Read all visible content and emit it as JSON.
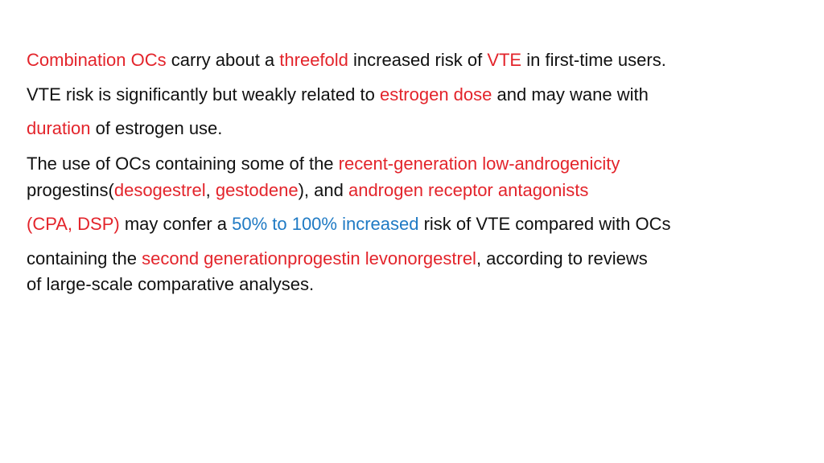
{
  "lines": [
    {
      "runs": [
        {
          "text": "Combination OCs",
          "color": "#e3242b"
        },
        {
          "text": " carry about a "
        },
        {
          "text": "threefold",
          "color": "#e3242b"
        },
        {
          "text": " increased risk of "
        },
        {
          "text": "VTE",
          "color": "#e3242b"
        },
        {
          "text": " in first-time users."
        }
      ]
    },
    {
      "runs": [
        {
          "text": "VTE risk is significantly but weakly related to "
        },
        {
          "text": "estrogen dose",
          "color": "#e3242b"
        },
        {
          "text": " and may wane with"
        }
      ]
    },
    {
      "runs": [
        {
          "text": "duration",
          "color": "#e3242b"
        },
        {
          "text": " of estrogen use."
        }
      ]
    },
    {
      "runs": [
        {
          "text": "The use of OCs containing some of the "
        },
        {
          "text": "recent-generation low-androgenicity",
          "color": "#e3242b"
        }
      ]
    },
    {
      "runs": [
        {
          "text": "progestins("
        },
        {
          "text": "desogestrel",
          "color": "#e3242b"
        },
        {
          "text": ", "
        },
        {
          "text": "gestodene",
          "color": "#e3242b"
        },
        {
          "text": "), and "
        },
        {
          "text": "androgen receptor antagonists",
          "color": "#e3242b"
        }
      ]
    },
    {
      "runs": [
        {
          "text": "(CPA, DSP)",
          "color": "#e3242b"
        },
        {
          "text": " may confer a "
        },
        {
          "text": "50% to 100% increased",
          "color": "#1f7ac4"
        },
        {
          "text": " risk of VTE compared with OCs"
        }
      ]
    },
    {
      "runs": [
        {
          "text": "containing the "
        },
        {
          "text": "second generationprogestin levonorgestrel",
          "color": "#e3242b"
        },
        {
          "text": ", according to reviews"
        }
      ]
    },
    {
      "runs": [
        {
          "text": "of large-scale comparative analyses."
        }
      ]
    }
  ]
}
